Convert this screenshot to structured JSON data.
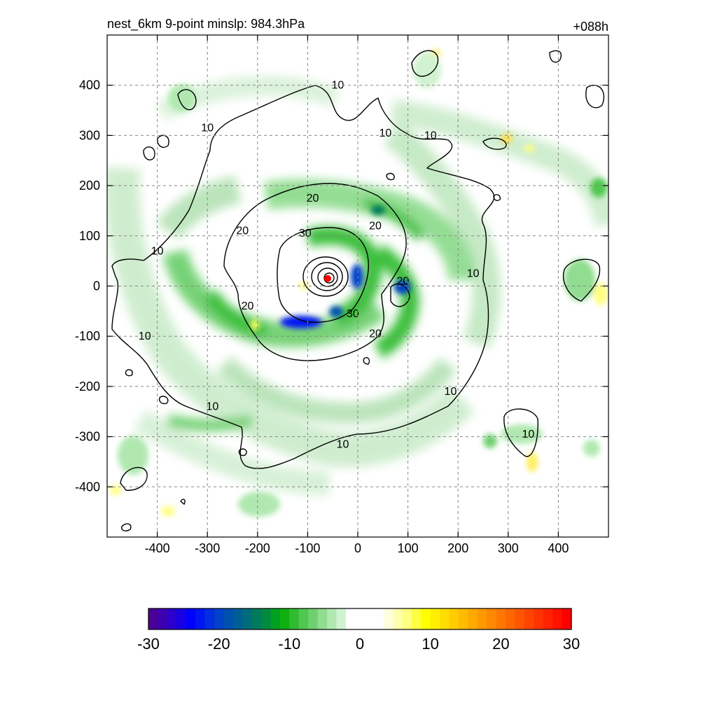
{
  "chart_data": {
    "type": "heatmap",
    "title": "nest_6km  9-point minslp: 984.3hPa",
    "subtitle_right": "+088h",
    "xlabel": "",
    "ylabel": "",
    "xlim": [
      -500,
      500
    ],
    "ylim": [
      -500,
      500
    ],
    "x_ticks": [
      -400,
      -300,
      -200,
      -100,
      0,
      100,
      200,
      300,
      400
    ],
    "y_ticks": [
      -400,
      -300,
      -200,
      -100,
      0,
      100,
      200,
      300,
      400
    ],
    "grid": true,
    "center_marker": {
      "x": -60,
      "y": 15,
      "color": "#ff0000"
    },
    "contour_levels": [
      10,
      20,
      30
    ],
    "contour_labels": [
      {
        "text": "10",
        "x": -40,
        "y": 400
      },
      {
        "text": "10",
        "x": -300,
        "y": 315
      },
      {
        "text": "10",
        "x": 55,
        "y": 305
      },
      {
        "text": "10",
        "x": 145,
        "y": 300
      },
      {
        "text": "10",
        "x": -400,
        "y": 70
      },
      {
        "text": "10",
        "x": 230,
        "y": 25
      },
      {
        "text": "10",
        "x": -425,
        "y": -100
      },
      {
        "text": "10",
        "x": -290,
        "y": -240
      },
      {
        "text": "10",
        "x": 185,
        "y": -210
      },
      {
        "text": "10",
        "x": -30,
        "y": -315
      },
      {
        "text": "10",
        "x": 340,
        "y": -295
      },
      {
        "text": "20",
        "x": -90,
        "y": 175
      },
      {
        "text": "20",
        "x": 35,
        "y": 120
      },
      {
        "text": "20",
        "x": -230,
        "y": 110
      },
      {
        "text": "20",
        "x": -220,
        "y": -40
      },
      {
        "text": "20",
        "x": 90,
        "y": 10
      },
      {
        "text": "20",
        "x": 35,
        "y": -95
      },
      {
        "text": "30",
        "x": -105,
        "y": 105
      },
      {
        "text": "30",
        "x": -10,
        "y": -55
      }
    ],
    "colorbar": {
      "min": -30,
      "max": 30,
      "ticks": [
        -30,
        -20,
        -10,
        0,
        10,
        20,
        30
      ],
      "colors": [
        "#4b0096",
        "#3d00b0",
        "#2a00cc",
        "#1800e4",
        "#0000ff",
        "#0016f0",
        "#002ee0",
        "#0042c8",
        "#0050b0",
        "#005e96",
        "#006b7a",
        "#007a5c",
        "#008a40",
        "#00a020",
        "#10b010",
        "#30bc30",
        "#50c850",
        "#70d070",
        "#90dc90",
        "#b0e8b0",
        "#d0f2d0",
        "#ffffff",
        "#ffffff",
        "#ffffff",
        "#ffffff",
        "#ffffe0",
        "#ffffb0",
        "#ffff80",
        "#ffff40",
        "#ffff00",
        "#ffee00",
        "#ffdd00",
        "#ffcc00",
        "#ffbb00",
        "#ffaa00",
        "#ff9900",
        "#ff8800",
        "#ff7700",
        "#ff6600",
        "#ff5500",
        "#ff4400",
        "#ff3300",
        "#ff2200",
        "#ff1100",
        "#ff0000"
      ]
    }
  }
}
